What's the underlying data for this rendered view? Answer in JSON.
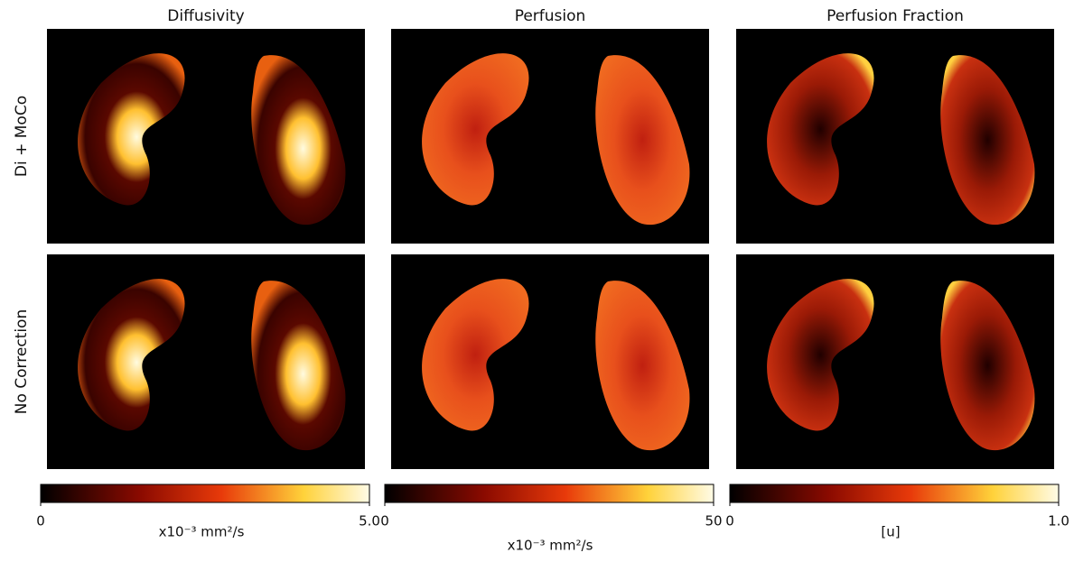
{
  "columns": [
    {
      "title": "Diffusivity",
      "colorbar": {
        "lim": [
          0,
          5
        ],
        "ticks": [
          0,
          {
            "value": 5,
            "label": "5.0"
          }
        ],
        "unit": "x10⁻³ mm²/s"
      }
    },
    {
      "title": "Perfusion",
      "colorbar": {
        "lim": [
          0,
          50
        ],
        "ticks": [
          0,
          50
        ],
        "unit": "x10⁻³ mm²/s"
      }
    },
    {
      "title": "Perfusion Fraction",
      "colorbar": {
        "lim": [
          0,
          1
        ],
        "ticks": [
          0,
          {
            "value": 1,
            "label": "1.0"
          }
        ],
        "unit": "[u]"
      }
    }
  ],
  "rows": [
    {
      "label": "Di + MoCo"
    },
    {
      "label": "No Correction"
    }
  ]
}
